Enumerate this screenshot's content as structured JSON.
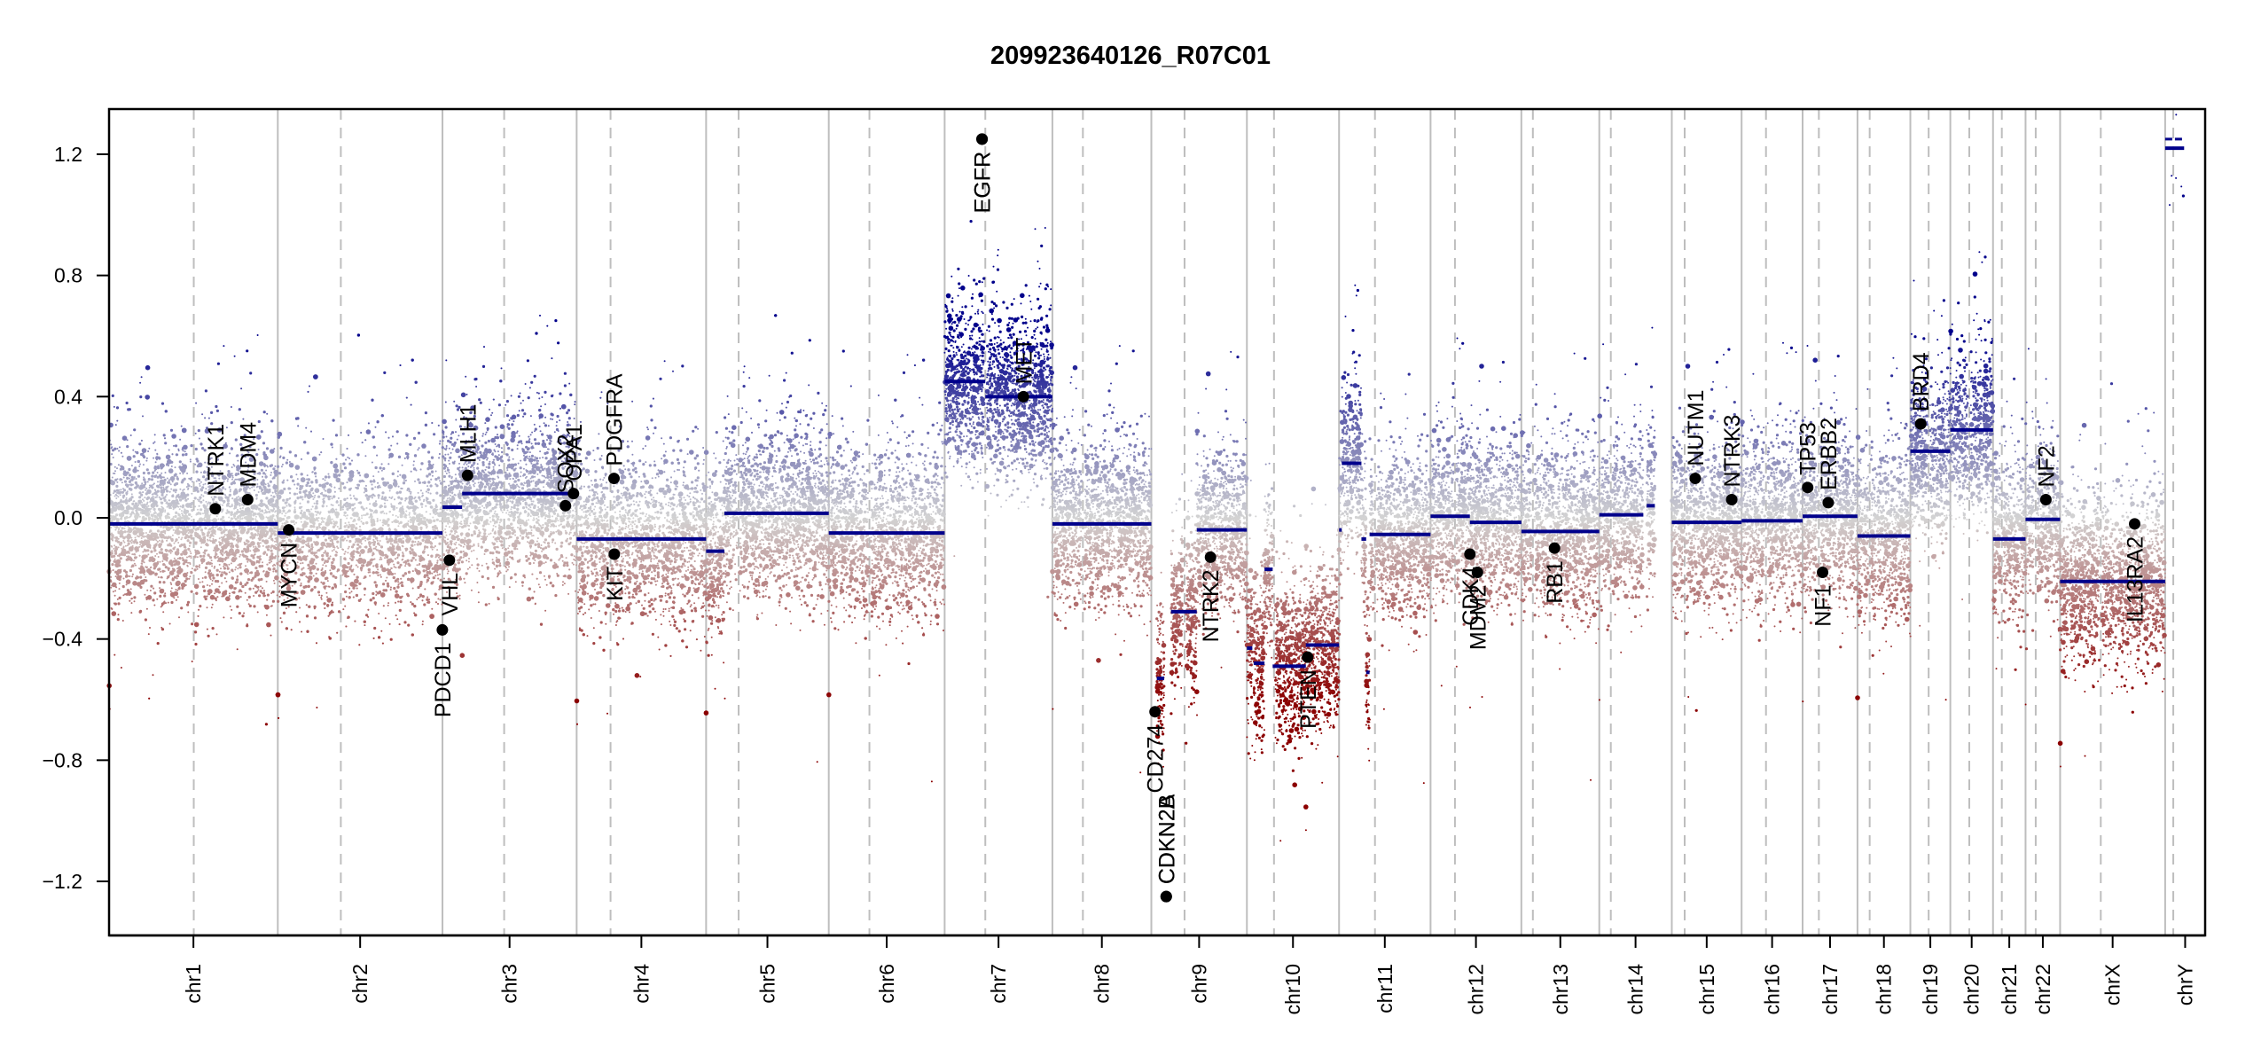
{
  "chart_data": {
    "type": "scatter",
    "title": "209923640126_R07C01",
    "xlabel": "",
    "ylabel": "",
    "ylim": [
      -1.38,
      1.35
    ],
    "yticks": [
      1.2,
      0.8,
      0.4,
      0.0,
      -0.4,
      -0.8,
      -1.2
    ],
    "ytick_labels": [
      "1.2",
      "0.8",
      "0.4",
      "0.0",
      "−0.4",
      "−0.8",
      "−1.2"
    ],
    "x_units": "Mb",
    "chromosomes": [
      {
        "name": "chr1",
        "length": 249,
        "centromere": 125
      },
      {
        "name": "chr2",
        "length": 243,
        "centromere": 93
      },
      {
        "name": "chr3",
        "length": 198,
        "centromere": 91
      },
      {
        "name": "chr4",
        "length": 191,
        "centromere": 50
      },
      {
        "name": "chr5",
        "length": 181,
        "centromere": 48
      },
      {
        "name": "chr6",
        "length": 171,
        "centromere": 60
      },
      {
        "name": "chr7",
        "length": 159,
        "centromere": 60
      },
      {
        "name": "chr8",
        "length": 146,
        "centromere": 45
      },
      {
        "name": "chr9",
        "length": 141,
        "centromere": 49
      },
      {
        "name": "chr10",
        "length": 136,
        "centromere": 40
      },
      {
        "name": "chr11",
        "length": 135,
        "centromere": 53
      },
      {
        "name": "chr12",
        "length": 134,
        "centromere": 36
      },
      {
        "name": "chr13",
        "length": 115,
        "centromere": 17
      },
      {
        "name": "chr14",
        "length": 107,
        "centromere": 17
      },
      {
        "name": "chr15",
        "length": 103,
        "centromere": 19
      },
      {
        "name": "chr16",
        "length": 90,
        "centromere": 36
      },
      {
        "name": "chr17",
        "length": 81,
        "centromere": 24
      },
      {
        "name": "chr18",
        "length": 78,
        "centromere": 18
      },
      {
        "name": "chr19",
        "length": 59,
        "centromere": 27
      },
      {
        "name": "chr20",
        "length": 63,
        "centromere": 28
      },
      {
        "name": "chr21",
        "length": 48,
        "centromere": 13
      },
      {
        "name": "chr22",
        "length": 51,
        "centromere": 15
      },
      {
        "name": "chrX",
        "length": 155,
        "centromere": 60
      },
      {
        "name": "chrY",
        "length": 59,
        "centromere": 12
      }
    ],
    "segments": [
      {
        "chr": "chr1",
        "start": 0,
        "end": 249,
        "value": -0.02
      },
      {
        "chr": "chr2",
        "start": 0,
        "end": 243,
        "value": -0.05
      },
      {
        "chr": "chr3",
        "start": 0,
        "end": 29,
        "value": 0.035
      },
      {
        "chr": "chr3",
        "start": 29,
        "end": 198,
        "value": 0.08
      },
      {
        "chr": "chr4",
        "start": 0,
        "end": 191,
        "value": -0.07
      },
      {
        "chr": "chr5",
        "start": 0,
        "end": 27,
        "value": -0.11
      },
      {
        "chr": "chr5",
        "start": 27,
        "end": 181,
        "value": 0.015
      },
      {
        "chr": "chr6",
        "start": 0,
        "end": 171,
        "value": -0.05
      },
      {
        "chr": "chr7",
        "start": 0,
        "end": 60,
        "value": 0.45
      },
      {
        "chr": "chr7",
        "start": 60,
        "end": 159,
        "value": 0.4
      },
      {
        "chr": "chr8",
        "start": 0,
        "end": 146,
        "value": -0.02
      },
      {
        "chr": "chr9",
        "start": 8,
        "end": 19,
        "value": -0.53
      },
      {
        "chr": "chr9",
        "start": 29,
        "end": 67,
        "value": -0.31
      },
      {
        "chr": "chr9",
        "start": 67,
        "end": 141,
        "value": -0.04
      },
      {
        "chr": "chr10",
        "start": 0,
        "end": 8,
        "value": -0.43
      },
      {
        "chr": "chr10",
        "start": 10,
        "end": 26,
        "value": -0.48
      },
      {
        "chr": "chr10",
        "start": 26,
        "end": 38,
        "value": -0.17
      },
      {
        "chr": "chr10",
        "start": 38,
        "end": 87,
        "value": -0.49
      },
      {
        "chr": "chr10",
        "start": 87,
        "end": 136,
        "value": -0.42
      },
      {
        "chr": "chr11",
        "start": 0,
        "end": 4,
        "value": -0.04
      },
      {
        "chr": "chr11",
        "start": 4,
        "end": 33,
        "value": 0.18
      },
      {
        "chr": "chr11",
        "start": 33,
        "end": 40,
        "value": -0.07
      },
      {
        "chr": "chr11",
        "start": 40,
        "end": 45,
        "value": -0.51
      },
      {
        "chr": "chr11",
        "start": 45,
        "end": 135,
        "value": -0.055
      },
      {
        "chr": "chr12",
        "start": 0,
        "end": 58,
        "value": 0.005
      },
      {
        "chr": "chr12",
        "start": 58,
        "end": 134,
        "value": -0.015
      },
      {
        "chr": "chr13",
        "start": 0,
        "end": 115,
        "value": -0.045
      },
      {
        "chr": "chr14",
        "start": 0,
        "end": 65,
        "value": 0.01
      },
      {
        "chr": "chr14",
        "start": 70,
        "end": 82,
        "value": 0.04
      },
      {
        "chr": "chr15",
        "start": 0,
        "end": 103,
        "value": -0.015
      },
      {
        "chr": "chr16",
        "start": 0,
        "end": 90,
        "value": -0.01
      },
      {
        "chr": "chr17",
        "start": 0,
        "end": 81,
        "value": 0.005
      },
      {
        "chr": "chr18",
        "start": 0,
        "end": 78,
        "value": -0.06
      },
      {
        "chr": "chr19",
        "start": 0,
        "end": 59,
        "value": 0.22
      },
      {
        "chr": "chr20",
        "start": 0,
        "end": 63,
        "value": 0.29
      },
      {
        "chr": "chr21",
        "start": 0,
        "end": 48,
        "value": -0.07
      },
      {
        "chr": "chr22",
        "start": 0,
        "end": 51,
        "value": -0.005
      },
      {
        "chr": "chrX",
        "start": 0,
        "end": 155,
        "value": -0.21
      },
      {
        "chr": "chrY",
        "start": 0,
        "end": 28,
        "value": 1.25,
        "style": "dashed"
      },
      {
        "chr": "chrY",
        "start": 0,
        "end": 28,
        "value": 1.22
      }
    ],
    "genes": [
      {
        "name": "NTRK1",
        "chr": "chr1",
        "pos": 156.8,
        "value": 0.03,
        "label": "up"
      },
      {
        "name": "MDM4",
        "chr": "chr1",
        "pos": 204.5,
        "value": 0.06,
        "label": "up"
      },
      {
        "name": "MYCN",
        "chr": "chr2",
        "pos": 16.1,
        "value": -0.04,
        "label": "down"
      },
      {
        "name": "PDCD1",
        "chr": "chr2",
        "pos": 242.8,
        "value": -0.37,
        "label": "down"
      },
      {
        "name": "VHL",
        "chr": "chr3",
        "pos": 10.2,
        "value": -0.14,
        "label": "down"
      },
      {
        "name": "MLH1",
        "chr": "chr3",
        "pos": 37.0,
        "value": 0.14,
        "label": "up"
      },
      {
        "name": "SOX2",
        "chr": "chr3",
        "pos": 181.4,
        "value": 0.04,
        "label": "up"
      },
      {
        "name": "OPA1",
        "chr": "chr3",
        "pos": 193.3,
        "value": 0.08,
        "label": "up"
      },
      {
        "name": "PDGFRA",
        "chr": "chr4",
        "pos": 55.1,
        "value": 0.13,
        "label": "up"
      },
      {
        "name": "KIT",
        "chr": "chr4",
        "pos": 55.5,
        "value": -0.12,
        "label": "down"
      },
      {
        "name": "EGFR",
        "chr": "chr7",
        "pos": 55.1,
        "value": 1.25,
        "label": "down"
      },
      {
        "name": "EGFR",
        "chr": "chr7",
        "pos": 55.3,
        "value": 1.25,
        "label": "down"
      },
      {
        "name": "MET",
        "chr": "chr7",
        "pos": 116.3,
        "value": 0.4,
        "label": "up"
      },
      {
        "name": "CD274",
        "chr": "chr9",
        "pos": 5.5,
        "value": -0.64,
        "label": "down"
      },
      {
        "name": "CDKN2A",
        "chr": "chr9",
        "pos": 21.97,
        "value": -1.25,
        "label": "up"
      },
      {
        "name": "CDKN2B",
        "chr": "chr9",
        "pos": 22.0,
        "value": -1.25,
        "label": "up"
      },
      {
        "name": "NTRK2",
        "chr": "chr9",
        "pos": 87.3,
        "value": -0.13,
        "label": "down"
      },
      {
        "name": "PTEN",
        "chr": "chr10",
        "pos": 89.6,
        "value": -0.46,
        "label": "down"
      },
      {
        "name": "CDK4",
        "chr": "chr12",
        "pos": 58.1,
        "value": -0.12,
        "label": "down"
      },
      {
        "name": "MDM2",
        "chr": "chr12",
        "pos": 69.2,
        "value": -0.18,
        "label": "down"
      },
      {
        "name": "RB1",
        "chr": "chr13",
        "pos": 48.9,
        "value": -0.1,
        "label": "down"
      },
      {
        "name": "NUTM1",
        "chr": "chr15",
        "pos": 34.6,
        "value": 0.13,
        "label": "up"
      },
      {
        "name": "NTRK3",
        "chr": "chr15",
        "pos": 88.4,
        "value": 0.06,
        "label": "up"
      },
      {
        "name": "TP53",
        "chr": "chr17",
        "pos": 7.5,
        "value": 0.1,
        "label": "up"
      },
      {
        "name": "NF1",
        "chr": "chr17",
        "pos": 29.5,
        "value": -0.18,
        "label": "down"
      },
      {
        "name": "ERBB2",
        "chr": "chr17",
        "pos": 37.8,
        "value": 0.05,
        "label": "up"
      },
      {
        "name": "BRD4",
        "chr": "chr19",
        "pos": 15.3,
        "value": 0.31,
        "label": "up"
      },
      {
        "name": "NF2",
        "chr": "chr22",
        "pos": 30.0,
        "value": 0.06,
        "label": "up"
      },
      {
        "name": "IL13RA2",
        "chr": "chrX",
        "pos": 110.0,
        "value": -0.02,
        "label": "down"
      }
    ],
    "grid": false,
    "colors": {
      "segment": "#00008b",
      "gain": "#00008b",
      "neutral": "#d3d3d3",
      "loss": "#8b0000",
      "boundary": "#bebebe",
      "gene_dot": "#000000",
      "axis": "#000000"
    }
  }
}
